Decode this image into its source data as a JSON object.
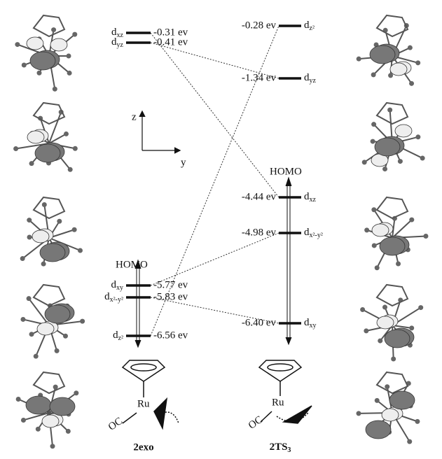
{
  "left_levels": [
    {
      "orbital": {
        "symbol": "d",
        "subscript": "xz"
      },
      "energy": "-0.31 ev"
    },
    {
      "orbital": {
        "symbol": "d",
        "subscript": "yz"
      },
      "energy": "-0.41 ev"
    },
    {
      "orbital": {
        "symbol": "d",
        "subscript": "xy"
      },
      "energy": "-5.77 ev"
    },
    {
      "orbital": {
        "symbol": "d",
        "subscript": "x²-y²"
      },
      "energy": "-5.83 ev"
    },
    {
      "orbital": {
        "symbol": "d",
        "subscript": "z²"
      },
      "energy": "-6.56 ev"
    }
  ],
  "right_levels": [
    {
      "orbital": {
        "symbol": "d",
        "subscript": "z²"
      },
      "energy": "-0.28 ev"
    },
    {
      "orbital": {
        "symbol": "d",
        "subscript": "yz"
      },
      "energy": "-1.34 ev"
    },
    {
      "orbital": {
        "symbol": "d",
        "subscript": "xz"
      },
      "energy": "-4.44 ev"
    },
    {
      "orbital": {
        "symbol": "d",
        "subscript": "x²-y²"
      },
      "energy": "-4.98 ev"
    },
    {
      "orbital": {
        "symbol": "d",
        "subscript": "xy"
      },
      "energy": "-6.40 ev"
    }
  ],
  "left_homo": "HOMO",
  "right_homo": "HOMO",
  "axes": {
    "z": "z",
    "y": "y"
  },
  "left_structure": {
    "metal": "Ru",
    "ligand": "OC",
    "name": "2exo"
  },
  "right_structure": {
    "metal": "Ru",
    "ligand": "OC",
    "name": {
      "main": "2TS",
      "subscript": "3"
    }
  }
}
